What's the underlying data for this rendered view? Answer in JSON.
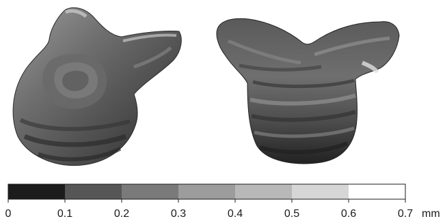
{
  "figure": {
    "shapes": [
      {
        "name": "left-view-surface"
      },
      {
        "name": "right-view-surface"
      }
    ]
  },
  "colorbar": {
    "unit": "mm",
    "tick_labels": [
      "0",
      "0.1",
      "0.2",
      "0.3",
      "0.4",
      "0.5",
      "0.6",
      "0.7"
    ],
    "bins": [
      {
        "range": [
          0.0,
          0.1
        ],
        "color": "#1c1c1c"
      },
      {
        "range": [
          0.1,
          0.2
        ],
        "color": "#565656"
      },
      {
        "range": [
          0.2,
          0.3
        ],
        "color": "#7a7a7a"
      },
      {
        "range": [
          0.3,
          0.4
        ],
        "color": "#9c9c9c"
      },
      {
        "range": [
          0.4,
          0.5
        ],
        "color": "#b8b8b8"
      },
      {
        "range": [
          0.5,
          0.6
        ],
        "color": "#d6d6d6"
      },
      {
        "range": [
          0.6,
          0.7
        ],
        "color": "#ffffff"
      }
    ],
    "range": [
      0,
      0.7
    ]
  }
}
